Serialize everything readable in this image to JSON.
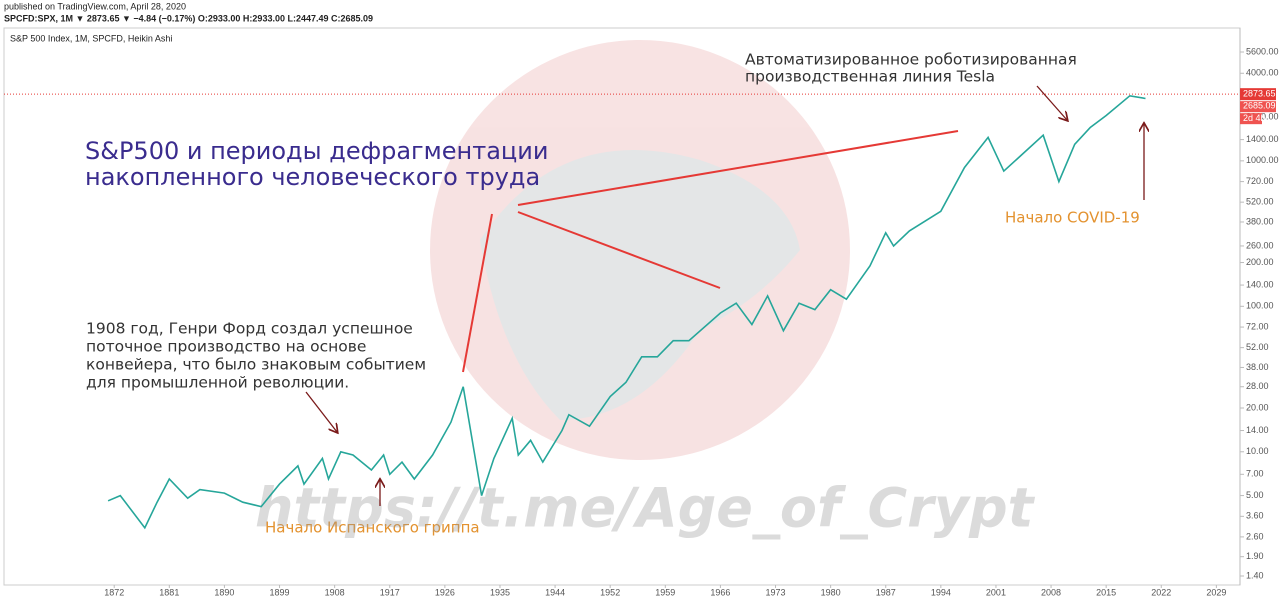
{
  "header": {
    "published": "published on TradingView.com, April 28, 2020",
    "quote": "SPCFD:SPX, 1M ▼ 2873.65 ▼ −4.84 (−0.17%) O:2933.00 H:2933.00 L:2447.49 C:2685.09"
  },
  "chart_data": {
    "type": "line",
    "legend_text": "S&P 500 Index, 1M, SPCFD, Heikin Ashi",
    "log_scale": true,
    "grid": false,
    "x": [
      1871,
      1873,
      1877,
      1879,
      1881,
      1884,
      1886,
      1890,
      1893,
      1896,
      1899,
      1902,
      1903,
      1906,
      1907,
      1909,
      1911,
      1914,
      1916,
      1917,
      1919,
      1921,
      1924,
      1927,
      1929,
      1932,
      1934,
      1937,
      1938,
      1940,
      1942,
      1945,
      1946,
      1949,
      1952,
      1954,
      1956,
      1958,
      1960,
      1962,
      1966,
      1968,
      1970,
      1972,
      1974,
      1976,
      1978,
      1980,
      1982,
      1985,
      1987,
      1988,
      1990,
      1994,
      1997,
      2000,
      2002,
      2007,
      2009,
      2011,
      2013,
      2015,
      2018,
      2020
    ],
    "series": [
      {
        "name": "S&P 500",
        "color": "#26a69a",
        "values": [
          4.6,
          5.0,
          3.0,
          4.5,
          6.5,
          4.8,
          5.5,
          5.2,
          4.5,
          4.2,
          6.0,
          8.0,
          6.0,
          9.0,
          6.5,
          10.0,
          9.5,
          7.5,
          9.5,
          7.0,
          8.5,
          6.5,
          9.5,
          16,
          28,
          5,
          9,
          17,
          9.5,
          12,
          8.5,
          14,
          18,
          15,
          24,
          30,
          45,
          45,
          58,
          58,
          90,
          105,
          75,
          118,
          68,
          105,
          95,
          130,
          112,
          190,
          320,
          260,
          330,
          450,
          900,
          1450,
          850,
          1500,
          720,
          1300,
          1700,
          2050,
          2800,
          2685.09
        ]
      }
    ],
    "last_price": {
      "value": 2873.65,
      "label": "2873.65"
    },
    "countdown": "2d 4h",
    "xlim": [
      1854,
      2032
    ],
    "xticks": [
      1872,
      1881,
      1890,
      1899,
      1908,
      1917,
      1926,
      1935,
      1944,
      1952,
      1959,
      1966,
      1973,
      1980,
      1987,
      1994,
      2001,
      2008,
      2015,
      2022,
      2029
    ],
    "ylim": [
      1.214,
      8190
    ],
    "yticks": [
      {
        "value": 5600,
        "label": "5600.00"
      },
      {
        "value": 4000,
        "label": "4000.00"
      },
      {
        "value": 2000,
        "label": "2000.00"
      },
      {
        "value": 1400,
        "label": "1400.00"
      },
      {
        "value": 1000,
        "label": "1000.00"
      },
      {
        "value": 720,
        "label": "720.00"
      },
      {
        "value": 520,
        "label": "520.00"
      },
      {
        "value": 380,
        "label": "380.00"
      },
      {
        "value": 260,
        "label": "260.00"
      },
      {
        "value": 200,
        "label": "200.00"
      },
      {
        "value": 140,
        "label": "140.00"
      },
      {
        "value": 100,
        "label": "100.00"
      },
      {
        "value": 72,
        "label": "72.00"
      },
      {
        "value": 52,
        "label": "52.00"
      },
      {
        "value": 38,
        "label": "38.00"
      },
      {
        "value": 28,
        "label": "28.00"
      },
      {
        "value": 20,
        "label": "20.00"
      },
      {
        "value": 14,
        "label": "14.00"
      },
      {
        "value": 10,
        "label": "10.00"
      },
      {
        "value": 7,
        "label": "7.00"
      },
      {
        "value": 5,
        "label": "5.00"
      },
      {
        "value": 3.6,
        "label": "3.60"
      },
      {
        "value": 2.6,
        "label": "2.60"
      },
      {
        "value": 1.9,
        "label": "1.90"
      },
      {
        "value": 1.4,
        "label": "1.40"
      }
    ],
    "annotations": {
      "title": [
        "S&P500 и периоды дефрагментации",
        "накопленного человеческого труда"
      ],
      "ford": [
        "1908 год, Генри Форд создал успешное",
        "поточное производство на основе",
        "конвейера, что было знаковым событием",
        "для промышленной революции."
      ],
      "tesla": [
        "Автоматизированное роботизированная",
        "производственная линия Tesla"
      ],
      "covid": "Начало COVID-19",
      "flu": "Начало Испанского гриппа",
      "watermark": "https://t.me/Age_of_Crypt"
    }
  }
}
